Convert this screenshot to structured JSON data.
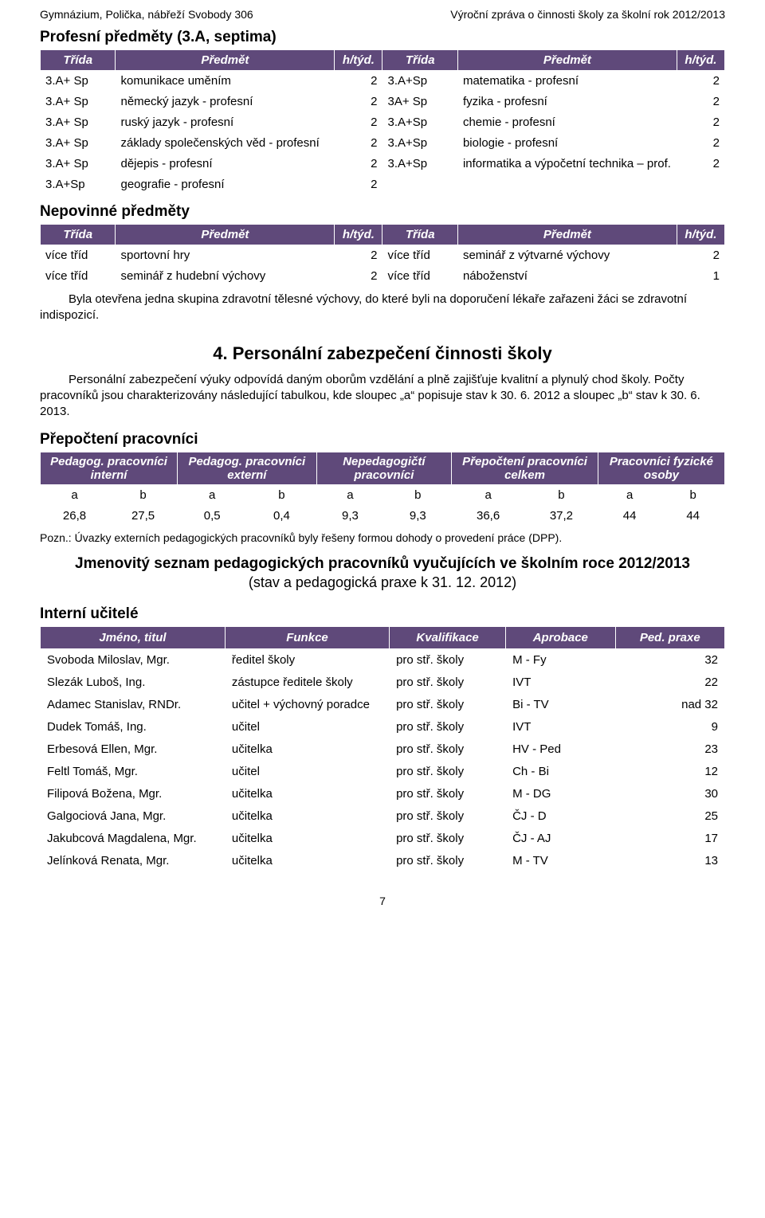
{
  "colors": {
    "header_bg": "#5f497a",
    "header_fg": "#ffffff",
    "page_bg": "#ffffff",
    "text": "#000000"
  },
  "header": {
    "left": "Gymnázium, Polička, nábřeží Svobody 306",
    "right": "Výroční zpráva o činnosti školy za školní rok 2012/2013"
  },
  "section_profesni": {
    "title": "Profesní předměty (3.A, septima)"
  },
  "th": {
    "trida": "Třída",
    "predmet": "Předmět",
    "htyd": "h/týd."
  },
  "profesni_rows": [
    {
      "t1": "3.A+ Sp",
      "p1": "komunikace uměním",
      "h1": "2",
      "t2": "3.A+Sp",
      "p2": "matematika - profesní",
      "h2": "2"
    },
    {
      "t1": "3.A+ Sp",
      "p1": "německý jazyk - profesní",
      "h1": "2",
      "t2": "3A+ Sp",
      "p2": "fyzika - profesní",
      "h2": "2"
    },
    {
      "t1": "3.A+ Sp",
      "p1": "ruský jazyk - profesní",
      "h1": "2",
      "t2": "3.A+Sp",
      "p2": "chemie - profesní",
      "h2": "2"
    },
    {
      "t1": "3.A+ Sp",
      "p1": "základy společenských věd - profesní",
      "h1": "2",
      "t2": "3.A+Sp",
      "p2": "biologie - profesní",
      "h2": "2"
    },
    {
      "t1": "3.A+ Sp",
      "p1": "dějepis - profesní",
      "h1": "2",
      "t2": "3.A+Sp",
      "p2": "informatika a výpočetní technika – prof.",
      "h2": "2"
    },
    {
      "t1": "3.A+Sp",
      "p1": "geografie - profesní",
      "h1": "2",
      "t2": "",
      "p2": "",
      "h2": ""
    }
  ],
  "section_nepov": {
    "title": "Nepovinné předměty"
  },
  "nepov_rows": [
    {
      "t1": "více tříd",
      "p1": "sportovní hry",
      "h1": "2",
      "t2": "více tříd",
      "p2": "seminář z výtvarné výchovy",
      "h2": "2"
    },
    {
      "t1": "více tříd",
      "p1": "seminář z hudební výchovy",
      "h1": "2",
      "t2": "více tříd",
      "p2": "náboženství",
      "h2": "1"
    }
  ],
  "para_nepov": "Byla otevřena jedna skupina zdravotní tělesné výchovy, do které byli na doporučení lékaře zařazeni žáci se zdravotní indispozicí.",
  "section4": {
    "title": "4. Personální zabezpečení činnosti školy"
  },
  "para4": "Personální zabezpečení výuky odpovídá daným oborům vzdělání a plně zajišťuje kvalitní a plynulý chod školy. Počty pracovníků jsou charakterizovány následující tabulkou, kde sloupec „a“ popisuje stav k 30. 6. 2012 a sloupec „b“ stav k 30. 6. 2013.",
  "prepocteni": {
    "title": "Přepočtení pracovníci",
    "head": [
      "Pedagog. pracovníci interní",
      "Pedagog. pracovníci externí",
      "Nepedagogičtí pracovníci",
      "Přepočtení pracovníci celkem",
      "Pracovníci fyzické osoby"
    ],
    "sub": [
      "a",
      "b",
      "a",
      "b",
      "a",
      "b",
      "a",
      "b",
      "a",
      "b"
    ],
    "vals": [
      "26,8",
      "27,5",
      "0,5",
      "0,4",
      "9,3",
      "9,3",
      "36,6",
      "37,2",
      "44",
      "44"
    ],
    "note": "Pozn.: Úvazky externích pedagogických pracovníků byly řešeny formou dohody o provedení práce (DPP)."
  },
  "seznam": {
    "line1": "Jmenovitý seznam pedagogických pracovníků vyučujících ve školním roce 2012/2013",
    "line2": "(stav a pedagogická praxe k 31. 12. 2012)"
  },
  "interni": {
    "title": "Interní učitelé",
    "head": {
      "jmeno": "Jméno, titul",
      "funkce": "Funkce",
      "kval": "Kvalifikace",
      "apr": "Aprobace",
      "praxe": "Ped. praxe"
    },
    "rows": [
      {
        "j": "Svoboda Miloslav, Mgr.",
        "f": "ředitel školy",
        "k": "pro stř. školy",
        "a": "M - Fy",
        "p": "32"
      },
      {
        "j": "Slezák Luboš, Ing.",
        "f": "zástupce ředitele školy",
        "k": "pro stř. školy",
        "a": "IVT",
        "p": "22"
      },
      {
        "j": "Adamec Stanislav, RNDr.",
        "f": "učitel + výchovný poradce",
        "k": "pro stř. školy",
        "a": "Bi - TV",
        "p": "nad 32"
      },
      {
        "j": "Dudek Tomáš, Ing.",
        "f": "učitel",
        "k": "pro stř. školy",
        "a": "IVT",
        "p": "9"
      },
      {
        "j": "Erbesová Ellen, Mgr.",
        "f": "učitelka",
        "k": "pro stř. školy",
        "a": "HV - Ped",
        "p": "23"
      },
      {
        "j": "Feltl Tomáš, Mgr.",
        "f": "učitel",
        "k": "pro stř. školy",
        "a": "Ch - Bi",
        "p": "12"
      },
      {
        "j": "Filipová Božena, Mgr.",
        "f": "učitelka",
        "k": "pro stř. školy",
        "a": "M - DG",
        "p": "30"
      },
      {
        "j": "Galgociová Jana, Mgr.",
        "f": "učitelka",
        "k": "pro stř. školy",
        "a": "ČJ - D",
        "p": "25"
      },
      {
        "j": "Jakubcová Magdalena, Mgr.",
        "f": "učitelka",
        "k": "pro stř. školy",
        "a": "ČJ - AJ",
        "p": "17"
      },
      {
        "j": "Jelínková Renata, Mgr.",
        "f": "učitelka",
        "k": "pro stř. školy",
        "a": "M - TV",
        "p": "13"
      }
    ]
  },
  "page_number": "7"
}
